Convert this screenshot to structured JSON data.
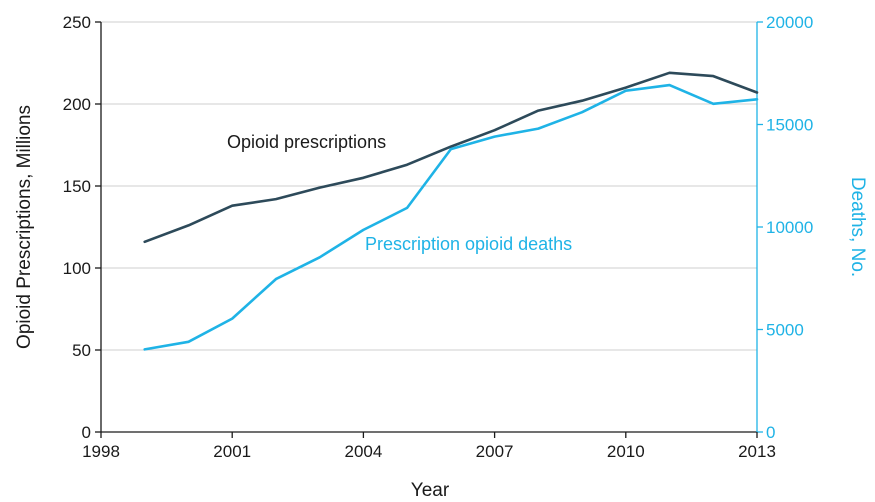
{
  "chart_data": {
    "type": "line",
    "title": "",
    "xlabel": "Year",
    "ylabel": "Opioid Prescriptions, Millions",
    "y2label": "Deaths, No.",
    "x": [
      1999,
      2000,
      2001,
      2002,
      2003,
      2004,
      2005,
      2006,
      2007,
      2008,
      2009,
      2010,
      2011,
      2012,
      2013
    ],
    "xlim": [
      1998,
      2013
    ],
    "xticks": [
      "1998",
      "2001",
      "2004",
      "2007",
      "2010",
      "2013"
    ],
    "ylim": [
      0,
      250
    ],
    "yticks": [
      "0",
      "50",
      "100",
      "150",
      "200",
      "250"
    ],
    "y2lim": [
      0,
      20000
    ],
    "y2ticks": [
      "0",
      "5000",
      "10000",
      "15000",
      "20000"
    ],
    "grid": true,
    "series": [
      {
        "name": "Opioid prescriptions",
        "axis": "left",
        "color": "#2d4a5a",
        "values": [
          116,
          126,
          138,
          142,
          149,
          155,
          163,
          174,
          184,
          196,
          202,
          210,
          219,
          217,
          207
        ]
      },
      {
        "name": "Prescription opioid deaths",
        "axis": "right",
        "color": "#1fb3e6",
        "values": [
          4030,
          4400,
          5530,
          7460,
          8520,
          9860,
          10930,
          13800,
          14410,
          14800,
          15600,
          16650,
          16920,
          16010,
          16230
        ]
      }
    ]
  }
}
